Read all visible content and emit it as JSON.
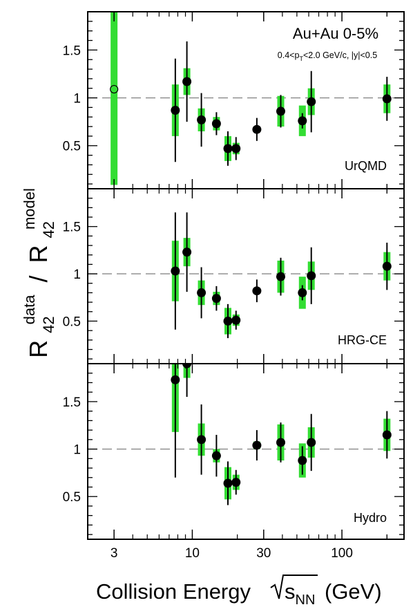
{
  "figure": {
    "xlabel_main": "Collision Energy",
    "xlabel_sqrt": "s",
    "xlabel_sub": "NN",
    "xlabel_unit": "(GeV)",
    "ylabel_r1": "R",
    "ylabel_sup1": "data",
    "ylabel_sub1": "42",
    "ylabel_sep": "/",
    "ylabel_r2": "R",
    "ylabel_sup2": "model",
    "ylabel_sub2": "42",
    "annotation_system": "Au+Au 0-5%",
    "annotation_cuts_a": "0.4<p",
    "annotation_cuts_sub": "T",
    "annotation_cuts_b": "<2.0 GeV/c, |y|<0.5"
  },
  "chart_data": {
    "type": "scatter",
    "x_scale": "log",
    "xlim": [
      2,
      260
    ],
    "x_ticks": [
      3,
      10,
      30,
      100
    ],
    "x_tick_labels": [
      "3",
      "10",
      "30",
      "100"
    ],
    "y_ticks": [
      0.5,
      1,
      1.5
    ],
    "y_tick_labels": [
      "0.5",
      "1",
      "1.5"
    ],
    "reference_line": 1,
    "colors": {
      "marker": "#000000",
      "sys_band": "#33dd33",
      "ref_line": "#888888"
    },
    "panels": [
      {
        "model": "UrQMD",
        "ylim": [
          0.05,
          1.9
        ],
        "points": [
          {
            "x": 3.0,
            "y": 1.09,
            "stat": 0,
            "sys": 1.0,
            "open": true
          },
          {
            "x": 7.7,
            "y": 0.87,
            "stat": 0.54,
            "sys": 0.27
          },
          {
            "x": 9.2,
            "y": 1.17,
            "stat": 0.42,
            "sys": 0.14
          },
          {
            "x": 11.5,
            "y": 0.77,
            "stat": 0.28,
            "sys": 0.12
          },
          {
            "x": 14.5,
            "y": 0.73,
            "stat": 0.12,
            "sys": 0.07
          },
          {
            "x": 17.3,
            "y": 0.47,
            "stat": 0.18,
            "sys": 0.13
          },
          {
            "x": 19.6,
            "y": 0.47,
            "stat": 0.12,
            "sys": 0.06
          },
          {
            "x": 27,
            "y": 0.67,
            "stat": 0.12,
            "sys": 0.03
          },
          {
            "x": 39,
            "y": 0.86,
            "stat": 0.17,
            "sys": 0.16
          },
          {
            "x": 54.4,
            "y": 0.76,
            "stat": 0.08,
            "sys": 0.16
          },
          {
            "x": 62.4,
            "y": 0.96,
            "stat": 0.32,
            "sys": 0.14
          },
          {
            "x": 200,
            "y": 0.99,
            "stat": 0.23,
            "sys": 0.15
          }
        ]
      },
      {
        "model": "HRG-CE",
        "ylim": [
          0.05,
          1.9
        ],
        "points": [
          {
            "x": 7.7,
            "y": 1.03,
            "stat": 0.62,
            "sys": 0.32
          },
          {
            "x": 9.2,
            "y": 1.23,
            "stat": 0.42,
            "sys": 0.15
          },
          {
            "x": 11.5,
            "y": 0.8,
            "stat": 0.27,
            "sys": 0.13
          },
          {
            "x": 14.5,
            "y": 0.74,
            "stat": 0.13,
            "sys": 0.07
          },
          {
            "x": 17.3,
            "y": 0.5,
            "stat": 0.18,
            "sys": 0.14
          },
          {
            "x": 19.6,
            "y": 0.51,
            "stat": 0.1,
            "sys": 0.06
          },
          {
            "x": 27,
            "y": 0.82,
            "stat": 0.12,
            "sys": 0.03
          },
          {
            "x": 39,
            "y": 0.97,
            "stat": 0.2,
            "sys": 0.17
          },
          {
            "x": 54.4,
            "y": 0.8,
            "stat": 0.08,
            "sys": 0.17
          },
          {
            "x": 62.4,
            "y": 0.98,
            "stat": 0.3,
            "sys": 0.15
          },
          {
            "x": 200,
            "y": 1.08,
            "stat": 0.25,
            "sys": 0.15
          }
        ]
      },
      {
        "model": "Hydro",
        "ylim": [
          0.05,
          1.9
        ],
        "points": [
          {
            "x": 7.7,
            "y": 1.73,
            "stat": 1.03,
            "sys": 0.55
          },
          {
            "x": 9.2,
            "y": 1.9,
            "stat": 0.35,
            "sys": 0.15
          },
          {
            "x": 11.5,
            "y": 1.1,
            "stat": 0.37,
            "sys": 0.17
          },
          {
            "x": 14.5,
            "y": 0.93,
            "stat": 0.22,
            "sys": 0.07
          },
          {
            "x": 17.3,
            "y": 0.64,
            "stat": 0.23,
            "sys": 0.17
          },
          {
            "x": 19.6,
            "y": 0.65,
            "stat": 0.13,
            "sys": 0.08
          },
          {
            "x": 27,
            "y": 1.04,
            "stat": 0.16,
            "sys": 0.04
          },
          {
            "x": 39,
            "y": 1.07,
            "stat": 0.21,
            "sys": 0.19
          },
          {
            "x": 54.4,
            "y": 0.88,
            "stat": 0.15,
            "sys": 0.18
          },
          {
            "x": 62.4,
            "y": 1.07,
            "stat": 0.3,
            "sys": 0.16
          },
          {
            "x": 200,
            "y": 1.15,
            "stat": 0.25,
            "sys": 0.17
          }
        ]
      }
    ]
  }
}
